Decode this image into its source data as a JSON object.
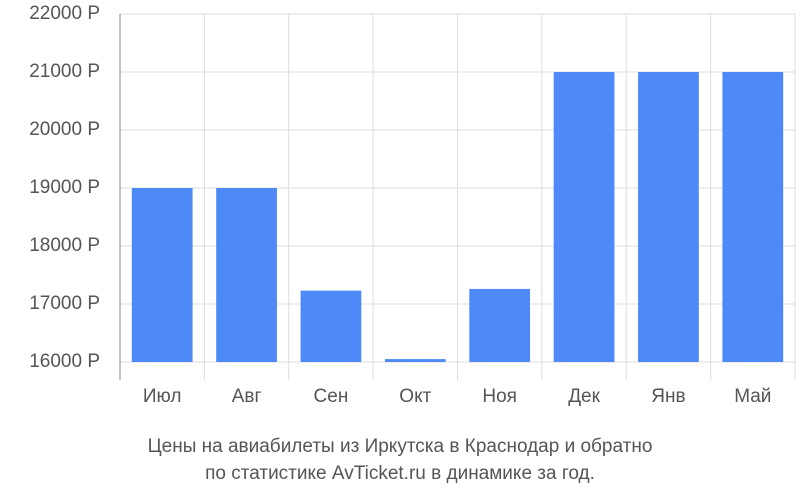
{
  "chart_data": {
    "type": "bar",
    "title": [
      "Цены на авиабилеты из Иркутска в Краснодар и обратно",
      "по статистике AvTicket.ru в динамике за год."
    ],
    "categories": [
      "Июл",
      "Авг",
      "Сен",
      "Окт",
      "Ноя",
      "Дек",
      "Янв",
      "Май"
    ],
    "values": [
      19000,
      19000,
      17230,
      16050,
      17260,
      21000,
      21000,
      21000
    ],
    "color": "#4d8af7",
    "ylim": [
      16000,
      22000
    ],
    "yticks": [
      {
        "value": 16000,
        "label": "16000 Р"
      },
      {
        "value": 17000,
        "label": "17000 Р"
      },
      {
        "value": 18000,
        "label": "18000 Р"
      },
      {
        "value": 19000,
        "label": "19000 Р"
      },
      {
        "value": 20000,
        "label": "20000 Р"
      },
      {
        "value": 21000,
        "label": "21000 Р"
      },
      {
        "value": 22000,
        "label": "22000 Р"
      }
    ],
    "grid": true
  }
}
